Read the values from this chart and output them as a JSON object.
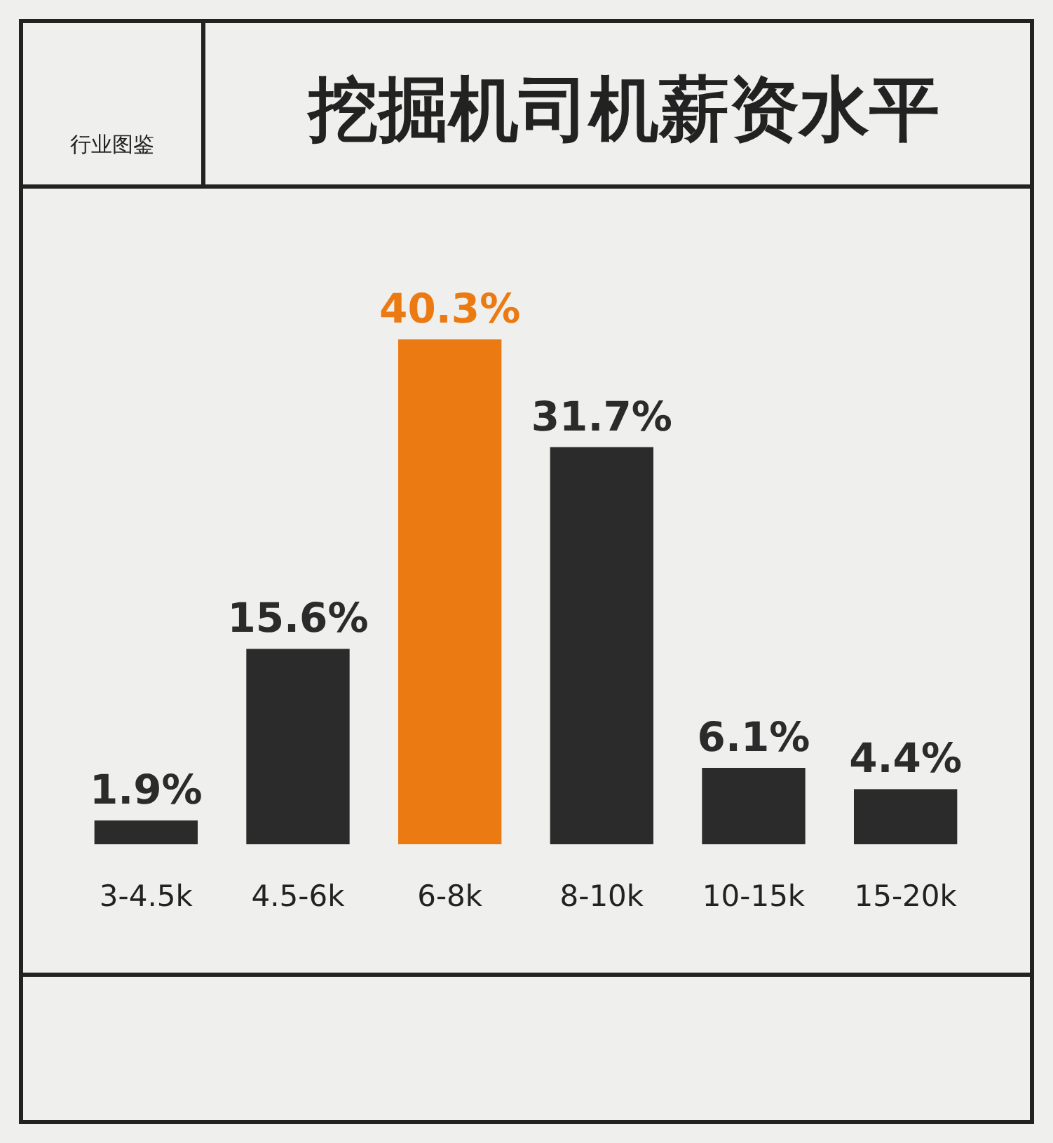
{
  "chart_data": {
    "type": "bar",
    "title": "挖掘机司机薪资水平",
    "annotations": [
      "行业图鉴"
    ],
    "categories": [
      "3-4.5k",
      "4.5-6k",
      "6-8k",
      "8-10k",
      "10-15k",
      "15-20k"
    ],
    "values": [
      1.9,
      15.6,
      40.3,
      31.7,
      6.1,
      4.4
    ],
    "colors": [
      "#2b2b2b",
      "#2b2b2b",
      "#ec7a12",
      "#2b2b2b",
      "#2b2b2b",
      "#2b2b2b"
    ],
    "value_labels": [
      "1.9%",
      "15.6%",
      "40.3%",
      "31.7%",
      "6.1%",
      "4.4%"
    ]
  }
}
